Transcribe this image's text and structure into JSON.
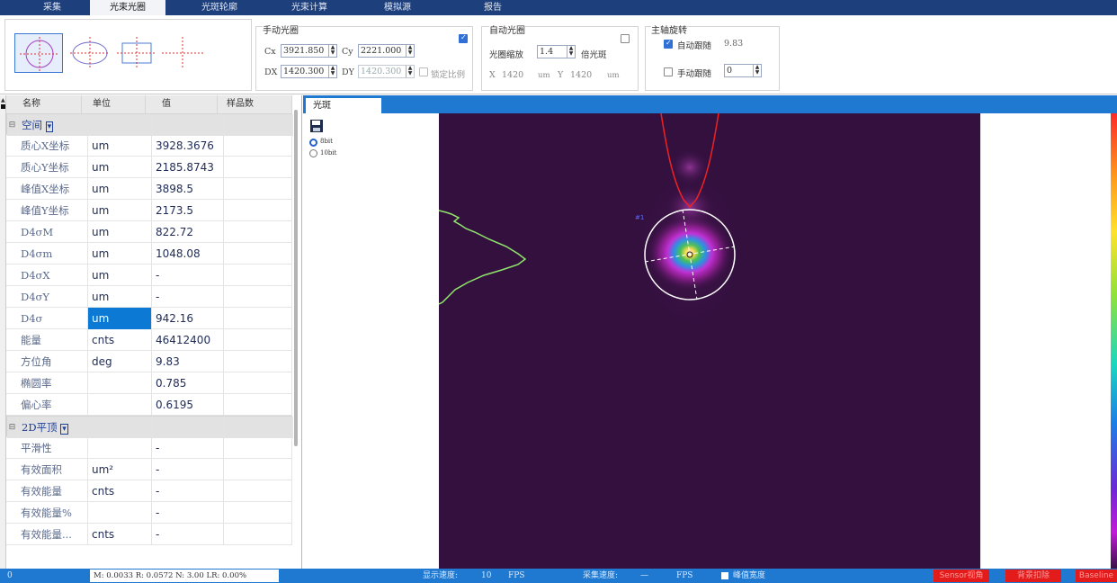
{
  "menu": {
    "tabs": [
      "采集",
      "光束光圈",
      "光斑轮廓",
      "光束计算",
      "模拟源",
      "报告"
    ],
    "active_index": 1
  },
  "toolbar": {
    "manual_aperture": {
      "title": "手动光圈",
      "cx_label": "Cx",
      "cx_value": "3921.850",
      "cy_label": "Cy",
      "cy_value": "2221.000",
      "dx_label": "DX",
      "dx_value": "1420.300",
      "dy_label": "DY",
      "dy_value": "1420.300",
      "lock_ratio_label": "锁定比例",
      "enabled": true
    },
    "auto_aperture": {
      "title": "自动光圈",
      "zoom_label": "光圈缩放",
      "zoom_value": "1.4",
      "zoom_unit": "倍光斑",
      "x_label": "X",
      "x_value": "1420",
      "x_unit": "um",
      "y_label": "Y",
      "y_value": "1420",
      "y_unit": "um",
      "enabled": false
    },
    "rotation": {
      "title": "主轴旋转",
      "auto_follow_label": "自动跟随",
      "auto_follow_value": "9.83",
      "auto_follow_checked": true,
      "manual_follow_label": "手动跟随",
      "manual_follow_value": "0",
      "manual_follow_checked": false
    }
  },
  "table": {
    "headers": [
      "名称",
      "单位",
      "值",
      "样品数"
    ],
    "group1": "空间",
    "rows1": [
      {
        "name": "质心X坐标",
        "unit": "um",
        "value": "3928.3676"
      },
      {
        "name": "质心Y坐标",
        "unit": "um",
        "value": "2185.8743"
      },
      {
        "name": "峰值X坐标",
        "unit": "um",
        "value": "3898.5"
      },
      {
        "name": "峰值Y坐标",
        "unit": "um",
        "value": "2173.5"
      },
      {
        "name": "D4σM",
        "unit": "um",
        "value": "822.72"
      },
      {
        "name": "D4σm",
        "unit": "um",
        "value": "1048.08"
      },
      {
        "name": "D4σX",
        "unit": "um",
        "value": "-"
      },
      {
        "name": "D4σY",
        "unit": "um",
        "value": "-"
      },
      {
        "name": "D4σ",
        "unit": "um",
        "value": "942.16"
      },
      {
        "name": "能量",
        "unit": "cnts",
        "value": "46412400"
      },
      {
        "name": "方位角",
        "unit": "deg",
        "value": "9.83"
      },
      {
        "name": "椭圆率",
        "unit": "",
        "value": "0.785"
      },
      {
        "name": "偏心率",
        "unit": "",
        "value": "0.6195"
      }
    ],
    "group2": "2D平顶",
    "rows2": [
      {
        "name": "平滑性",
        "unit": "",
        "value": "-"
      },
      {
        "name": "有效面积",
        "unit": "um²",
        "value": "-"
      },
      {
        "name": "有效能量",
        "unit": "cnts",
        "value": "-"
      },
      {
        "name": "有效能量%",
        "unit": "",
        "value": "-"
      },
      {
        "name": "有效能量...",
        "unit": "cnts",
        "value": "-"
      }
    ]
  },
  "viewer": {
    "tab_label": "光斑",
    "bit_options": [
      "8bit",
      "10bit"
    ],
    "selected_bit": "8bit",
    "beam_marker": "#1"
  },
  "status": {
    "left_value": "0",
    "metrics": "M: 0.0033  R: 0.0572  N: 3.00  LR: 0.00%",
    "display_speed_label": "显示速度:",
    "display_speed_value": "10",
    "display_speed_unit": "FPS",
    "capture_speed_label": "采集速度:",
    "capture_speed_value": "—",
    "capture_speed_unit": "FPS",
    "peak_width_label": "峰值宽度",
    "btn_sensor": "Sensor视角",
    "btn_bg": "背景扣除",
    "btn_baseline": "Baseline"
  },
  "colors": {
    "menubar": "#1d3f7c",
    "accent_blue": "#1f79d0",
    "beam_bg": "#34103f",
    "alert_red": "#e31b1b"
  }
}
